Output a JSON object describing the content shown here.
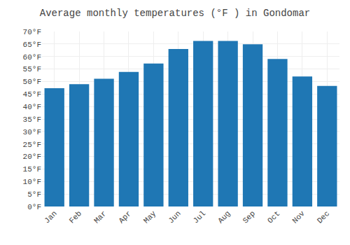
{
  "chart_data": {
    "type": "bar",
    "title": "Average monthly temperatures (°F ) in Gondomar",
    "categories": [
      "Jan",
      "Feb",
      "Mar",
      "Apr",
      "May",
      "Jun",
      "Jul",
      "Aug",
      "Sep",
      "Oct",
      "Nov",
      "Dec"
    ],
    "values": [
      47.3,
      48.9,
      51.1,
      53.8,
      57.2,
      63.0,
      66.2,
      66.2,
      64.9,
      59.0,
      52.0,
      48.2
    ],
    "ylim": [
      0,
      70
    ],
    "yticks": [
      {
        "value": 0,
        "label": "0°F"
      },
      {
        "value": 5,
        "label": "5°F"
      },
      {
        "value": 10,
        "label": "10°F"
      },
      {
        "value": 15,
        "label": "15°F"
      },
      {
        "value": 20,
        "label": "20°F"
      },
      {
        "value": 25,
        "label": "25°F"
      },
      {
        "value": 30,
        "label": "30°F"
      },
      {
        "value": 35,
        "label": "35°F"
      },
      {
        "value": 40,
        "label": "40°F"
      },
      {
        "value": 45,
        "label": "45°F"
      },
      {
        "value": 50,
        "label": "50°F"
      },
      {
        "value": 55,
        "label": "55°F"
      },
      {
        "value": 60,
        "label": "60°F"
      },
      {
        "value": 65,
        "label": "65°F"
      },
      {
        "value": 70,
        "label": "70°F"
      }
    ],
    "grid": true
  }
}
